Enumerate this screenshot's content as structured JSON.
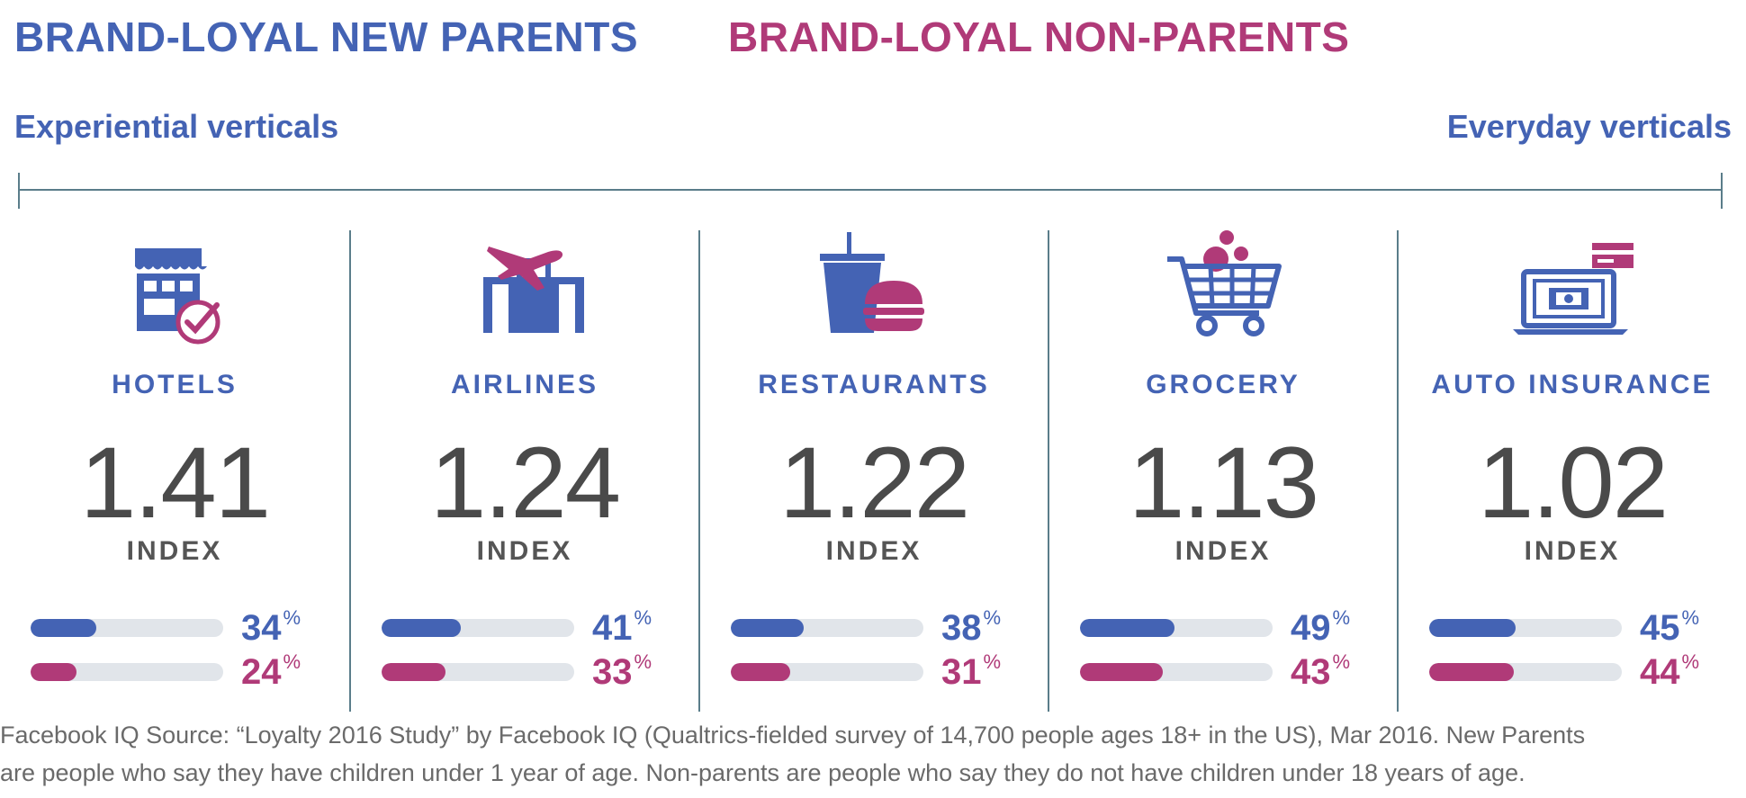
{
  "legend": {
    "parents": "BRAND-LOYAL NEW PARENTS",
    "non_parents": "BRAND-LOYAL NON-PARENTS"
  },
  "axis": {
    "left_label": "Experiential verticals",
    "right_label": "Everyday verticals"
  },
  "colors": {
    "parents": "#4463b4",
    "non_parents": "#b03a78",
    "track": "#e1e5ea"
  },
  "index_label": "INDEX",
  "percent_unit": "%",
  "chart_data": {
    "type": "bar",
    "categories": [
      "HOTELS",
      "AIRLINES",
      "RESTAURANTS",
      "GROCERY",
      "AUTO INSURANCE"
    ],
    "index": [
      "1.41",
      "1.24",
      "1.22",
      "1.13",
      "1.02"
    ],
    "series": [
      {
        "name": "BRAND-LOYAL NEW PARENTS",
        "values": [
          34,
          41,
          38,
          49,
          45
        ]
      },
      {
        "name": "BRAND-LOYAL NON-PARENTS",
        "values": [
          24,
          33,
          31,
          43,
          44
        ]
      }
    ],
    "ylim": [
      0,
      100
    ],
    "icons": [
      "hotel-icon",
      "airplane-luggage-icon",
      "drink-burger-icon",
      "shopping-cart-icon",
      "laptop-card-icon"
    ]
  },
  "footnote": {
    "line1": "Facebook IQ Source: “Loyalty 2016 Study” by Facebook IQ (Qualtrics-fielded survey of 14,700 people ages 18+ in the US), Mar 2016. New Parents",
    "line2": "are people who say they have children under 1 year of age. Non-parents are people who say they do not have children under 18 years of age."
  }
}
